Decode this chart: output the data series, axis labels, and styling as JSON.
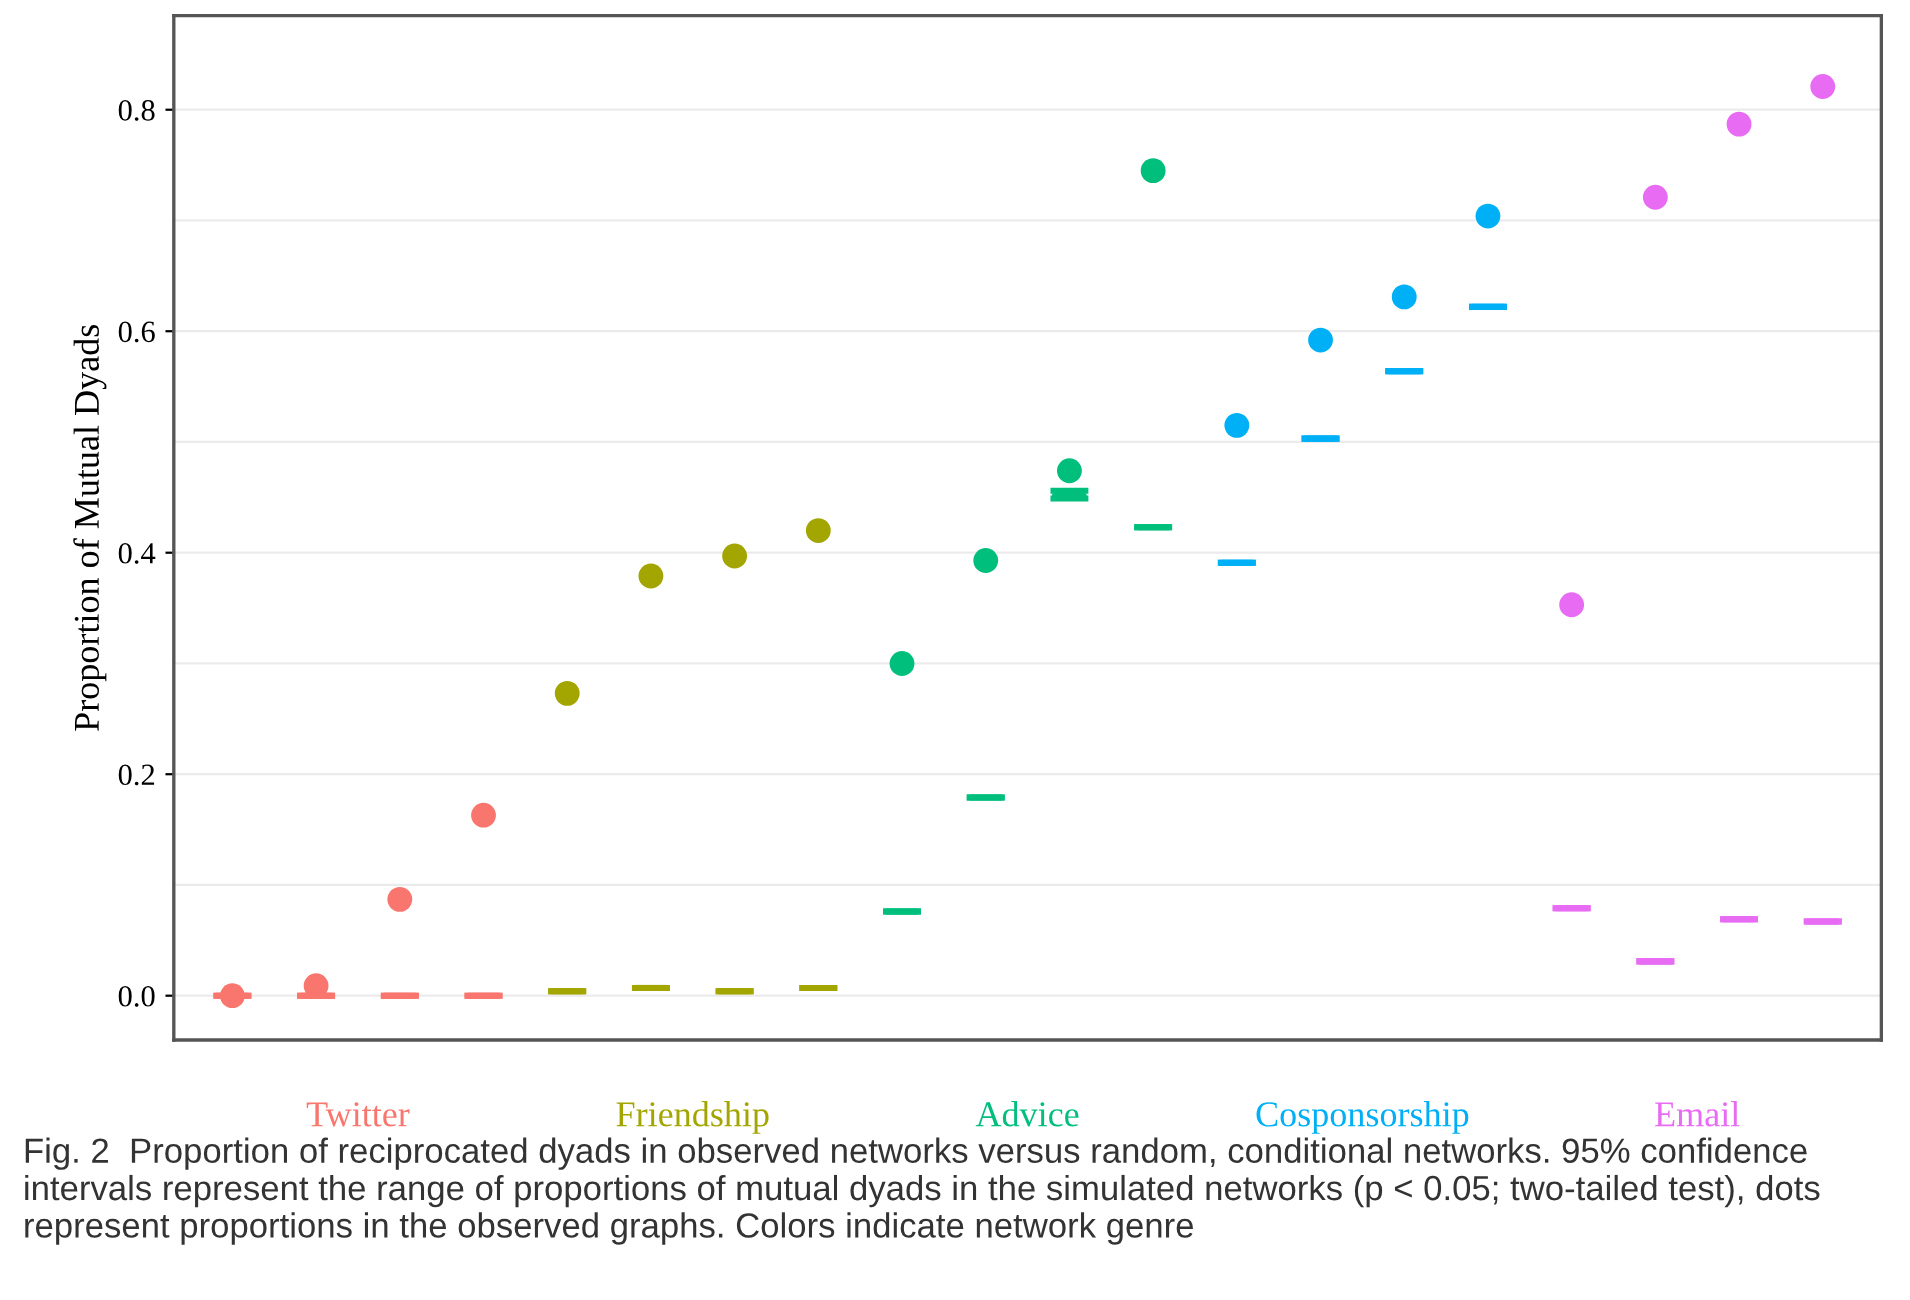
{
  "chart_data": {
    "type": "scatter",
    "ylabel": "Proportion of Mutual Dyads",
    "annotations": [
      "Twitter",
      "Friendship",
      "Advice",
      "Cosponsorship",
      "Email",
      "Fig. 2  Proportion of reciprocated dyads in observed networks versus random, conditional networks. 95% confidence intervals represent the range of proportions of mutual dyads in the simulated networks (p < 0.05; two-tailed test), dots represent proportions in the observed graphs. Colors indicate network genre"
    ],
    "categories": [
      null,
      null,
      null,
      null,
      null,
      null,
      null,
      null,
      null,
      null,
      null,
      null,
      null,
      null,
      null,
      null,
      null,
      null,
      null,
      null
    ],
    "ylim": [
      -0.04,
      0.885
    ],
    "yticks": [
      {
        "value": 0,
        "label": "0.0"
      },
      {
        "value": 0.1,
        "label": null
      },
      {
        "value": 0.2,
        "label": "0.2"
      },
      {
        "value": 0.3,
        "label": null
      },
      {
        "value": 0.4,
        "label": "0.4"
      },
      {
        "value": 0.5,
        "label": null
      },
      {
        "value": 0.6,
        "label": "0.6"
      },
      {
        "value": 0.7,
        "label": null
      },
      {
        "value": 0.8,
        "label": "0.8"
      }
    ],
    "grid": "y",
    "marker": "circle",
    "series": [
      {
        "color": "#f8766d",
        "values": [
          0.0,
          0.009,
          0.087,
          0.163,
          null,
          null,
          null,
          null,
          null,
          null,
          null,
          null,
          null,
          null,
          null,
          null,
          null,
          null,
          null,
          null
        ]
      },
      {
        "type": "box",
        "color": "#f8766d",
        "boxes": [
          {
            "low": 0.0,
            "q1": 0.0,
            "median": 0.0,
            "q3": 0.0,
            "high": 0.0
          },
          {
            "low": 0.0,
            "q1": 0.0,
            "median": 0.0,
            "q3": 0.0,
            "high": 0.0
          },
          {
            "low": 0.0,
            "q1": 0.0,
            "median": 0.0,
            "q3": 0.0,
            "high": 0.0
          },
          {
            "low": 0.0,
            "q1": 0.0,
            "median": 0.0,
            "q3": 0.0,
            "high": 0.0
          },
          null,
          null,
          null,
          null,
          null,
          null,
          null,
          null,
          null,
          null,
          null,
          null,
          null,
          null,
          null,
          null
        ]
      },
      {
        "color": "#a3a500",
        "values": [
          null,
          null,
          null,
          null,
          0.273,
          0.379,
          0.397,
          0.42,
          null,
          null,
          null,
          null,
          null,
          null,
          null,
          null,
          null,
          null,
          null,
          null
        ]
      },
      {
        "type": "box",
        "color": "#a3a500",
        "boxes": [
          null,
          null,
          null,
          null,
          {
            "low": 0.004,
            "q1": 0.004,
            "median": 0.004,
            "q3": 0.004,
            "high": 0.004
          },
          {
            "low": 0.007,
            "q1": 0.007,
            "median": 0.007,
            "q3": 0.007,
            "high": 0.007
          },
          {
            "low": 0.004,
            "q1": 0.004,
            "median": 0.004,
            "q3": 0.004,
            "high": 0.004
          },
          {
            "low": 0.007,
            "q1": 0.007,
            "median": 0.007,
            "q3": 0.007,
            "high": 0.007
          },
          null,
          null,
          null,
          null,
          null,
          null,
          null,
          null,
          null,
          null,
          null,
          null
        ]
      },
      {
        "color": "#00bf7d",
        "values": [
          null,
          null,
          null,
          null,
          null,
          null,
          null,
          null,
          0.3,
          0.393,
          0.474,
          0.745,
          null,
          null,
          null,
          null,
          null,
          null,
          null,
          null
        ]
      },
      {
        "type": "box",
        "color": "#00bf7d",
        "boxes": [
          null,
          null,
          null,
          null,
          null,
          null,
          null,
          null,
          {
            "low": 0.076,
            "q1": 0.076,
            "median": 0.076,
            "q3": 0.076,
            "high": 0.076
          },
          {
            "low": 0.179,
            "q1": 0.179,
            "median": 0.179,
            "q3": 0.179,
            "high": 0.179
          },
          {
            "low": 0.449,
            "q1": 0.452,
            "median": 0.452,
            "q3": 0.452,
            "high": 0.456
          },
          {
            "low": 0.423,
            "q1": 0.423,
            "median": 0.423,
            "q3": 0.423,
            "high": 0.423
          },
          null,
          null,
          null,
          null,
          null,
          null,
          null,
          null
        ]
      },
      {
        "color": "#00b0f6",
        "values": [
          null,
          null,
          null,
          null,
          null,
          null,
          null,
          null,
          null,
          null,
          null,
          null,
          0.515,
          0.592,
          0.631,
          0.704,
          null,
          null,
          null,
          null
        ]
      },
      {
        "type": "box",
        "color": "#00b0f6",
        "boxes": [
          null,
          null,
          null,
          null,
          null,
          null,
          null,
          null,
          null,
          null,
          null,
          null,
          {
            "low": 0.391,
            "q1": 0.391,
            "median": 0.391,
            "q3": 0.391,
            "high": 0.391
          },
          {
            "low": 0.503,
            "q1": 0.503,
            "median": 0.503,
            "q3": 0.503,
            "high": 0.503
          },
          {
            "low": 0.564,
            "q1": 0.564,
            "median": 0.564,
            "q3": 0.564,
            "high": 0.564
          },
          {
            "low": 0.622,
            "q1": 0.622,
            "median": 0.622,
            "q3": 0.622,
            "high": 0.622
          },
          null,
          null,
          null,
          null
        ]
      },
      {
        "color": "#e76bf3",
        "values": [
          null,
          null,
          null,
          null,
          null,
          null,
          null,
          null,
          null,
          null,
          null,
          null,
          null,
          null,
          null,
          null,
          0.353,
          0.721,
          0.787,
          0.821
        ]
      },
      {
        "type": "box",
        "color": "#e76bf3",
        "boxes": [
          null,
          null,
          null,
          null,
          null,
          null,
          null,
          null,
          null,
          null,
          null,
          null,
          null,
          null,
          null,
          null,
          {
            "low": 0.079,
            "q1": 0.079,
            "median": 0.079,
            "q3": 0.079,
            "high": 0.079
          },
          {
            "low": 0.031,
            "q1": 0.031,
            "median": 0.031,
            "q3": 0.031,
            "high": 0.031
          },
          {
            "low": 0.069,
            "q1": 0.069,
            "median": 0.069,
            "q3": 0.069,
            "high": 0.069
          },
          {
            "low": 0.067,
            "q1": 0.067,
            "median": 0.067,
            "q3": 0.067,
            "high": 0.067
          }
        ]
      }
    ]
  }
}
